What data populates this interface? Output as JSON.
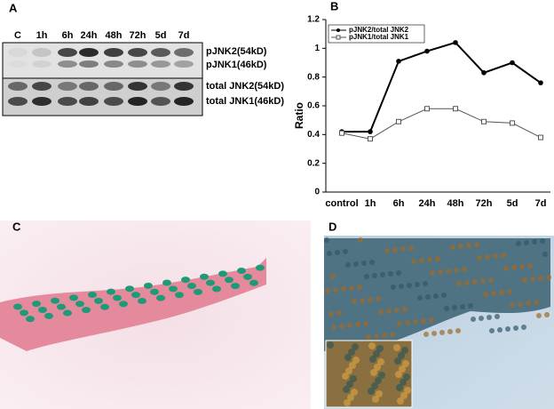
{
  "panel_labels": [
    "A",
    "B",
    "C",
    "D"
  ],
  "blot": {
    "lanes": [
      "C",
      "1h",
      "6h",
      "24h",
      "48h",
      "72h",
      "5d",
      "7d"
    ],
    "band_labels": [
      "pJNK2(54kD)",
      "pJNK1(46kD)",
      "total JNK2(54kD)",
      "total JNK1(46kD)"
    ]
  },
  "chart_data": {
    "type": "line",
    "ylabel": "Ratio",
    "categories": [
      "control",
      "1h",
      "6h",
      "24h",
      "48h",
      "72h",
      "5d",
      "7d"
    ],
    "series": [
      {
        "name": "pJNK2/total JNK2",
        "color": "#000000",
        "marker": "filled-circle",
        "values": [
          0.42,
          0.42,
          0.91,
          0.98,
          1.04,
          0.83,
          0.9,
          0.76
        ]
      },
      {
        "name": "pJNK1/total JNK1",
        "color": "#555555",
        "marker": "open-square",
        "values": [
          0.41,
          0.37,
          0.49,
          0.58,
          0.58,
          0.49,
          0.48,
          0.38
        ]
      }
    ],
    "ylim": [
      0,
      1.2
    ],
    "yticks": [
      0,
      0.2,
      0.4,
      0.6,
      0.8,
      1,
      1.2
    ],
    "legend": "upper-left"
  }
}
